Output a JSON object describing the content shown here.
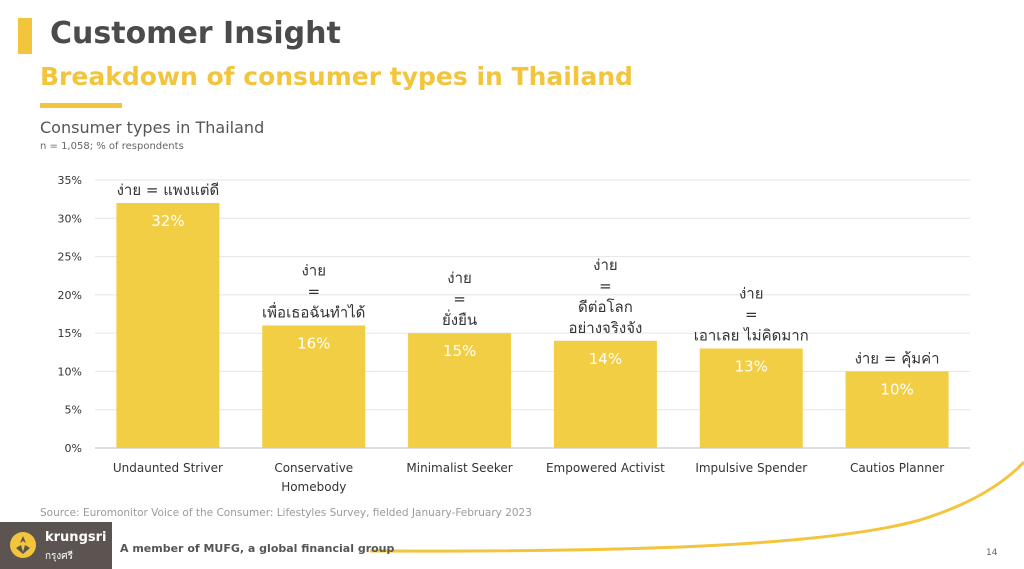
{
  "header": {
    "title": "Customer Insight",
    "subtitle": "Breakdown of consumer types in Thailand"
  },
  "chart_data": {
    "type": "bar",
    "title": "Consumer types in Thailand",
    "note": "n = 1,058; % of respondents",
    "categories": [
      "Undaunted Striver",
      "Conservative Homebody",
      "Minimalist Seeker",
      "Empowered Activist",
      "Impulsive Spender",
      "Cautios Planner"
    ],
    "category_lines": [
      [
        "Undaunted Striver"
      ],
      [
        "Conservative",
        "Homebody"
      ],
      [
        "Minimalist Seeker"
      ],
      [
        "Empowered Activist"
      ],
      [
        "Impulsive Spender"
      ],
      [
        "Cautios Planner"
      ]
    ],
    "values": [
      32,
      16,
      15,
      14,
      13,
      10
    ],
    "value_labels": [
      "32%",
      "16%",
      "15%",
      "14%",
      "13%",
      "10%"
    ],
    "annotations": [
      [
        "ง่าย = แพงแต่ดี"
      ],
      [
        "ง่าย",
        "=",
        "เพื่อเธอฉันทำได้"
      ],
      [
        "ง่าย",
        "=",
        "ยั่งยืน"
      ],
      [
        "ง่าย",
        "=",
        "ดีต่อโลก",
        "อย่างจริงจัง"
      ],
      [
        "ง่าย",
        "=",
        "เอาเลย ไม่คิดมาก"
      ],
      [
        "ง่าย = คุ้มค่า"
      ]
    ],
    "yticks": [
      "0%",
      "5%",
      "10%",
      "15%",
      "20%",
      "25%",
      "30%",
      "35%"
    ],
    "ylim": [
      0,
      35
    ],
    "grid": true,
    "bar_color": "#f2ce45"
  },
  "footer": {
    "source": "Source: Euromonitor Voice of the Consumer: Lifestyles Survey, fielded January-February 2023",
    "brand_name": "krungsri",
    "brand_thai": "กรุงศรี",
    "tagline": "A member of MUFG, a global financial group",
    "page_number": "14"
  },
  "colors": {
    "accent": "#f2c53d",
    "title": "#4b4b4b",
    "logo_bg": "#5b5450"
  }
}
